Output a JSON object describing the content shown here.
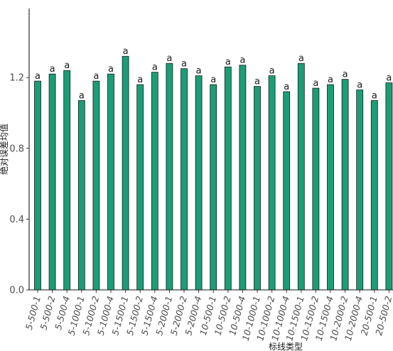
{
  "chart_data": {
    "type": "bar",
    "xlabel": "标线类型",
    "ylabel": "绝对误差均值",
    "categories": [
      "5-500-1",
      "5-500-2",
      "5-500-4",
      "5-1000-1",
      "5-1000-2",
      "5-1000-4",
      "5-1500-1",
      "5-1500-2",
      "5-1500-4",
      "5-2000-1",
      "5-2000-2",
      "5-2000-4",
      "10-500-1",
      "10-500-2",
      "10-500-4",
      "10-1000-1",
      "10-1000-2",
      "10-1000-4",
      "10-1500-1",
      "10-1500-2",
      "10-1500-4",
      "10-2000-2",
      "10-2000-4",
      "20-500-1",
      "20-500-2"
    ],
    "values": [
      1.18,
      1.22,
      1.24,
      1.07,
      1.18,
      1.22,
      1.32,
      1.16,
      1.23,
      1.28,
      1.25,
      1.21,
      1.16,
      1.26,
      1.27,
      1.15,
      1.21,
      1.12,
      1.28,
      1.14,
      1.16,
      1.19,
      1.13,
      1.07,
      1.17
    ],
    "data_labels": [
      "a",
      "a",
      "a",
      "a",
      "a",
      "a",
      "a",
      "a",
      "a",
      "a",
      "a",
      "a",
      "a",
      "a",
      "a",
      "a",
      "a",
      "a",
      "a",
      "a",
      "a",
      "a",
      "a",
      "a",
      "a"
    ],
    "yticks": [
      "0.0",
      "0.4",
      "0.8",
      "1.2"
    ],
    "ytick_values": [
      0.0,
      0.4,
      0.8,
      1.2
    ],
    "ylim": [
      0,
      1.59
    ],
    "grid": false,
    "legend": "none",
    "bar_color": "#1b9e77",
    "bar_edge_color": "#1a1a1a"
  }
}
